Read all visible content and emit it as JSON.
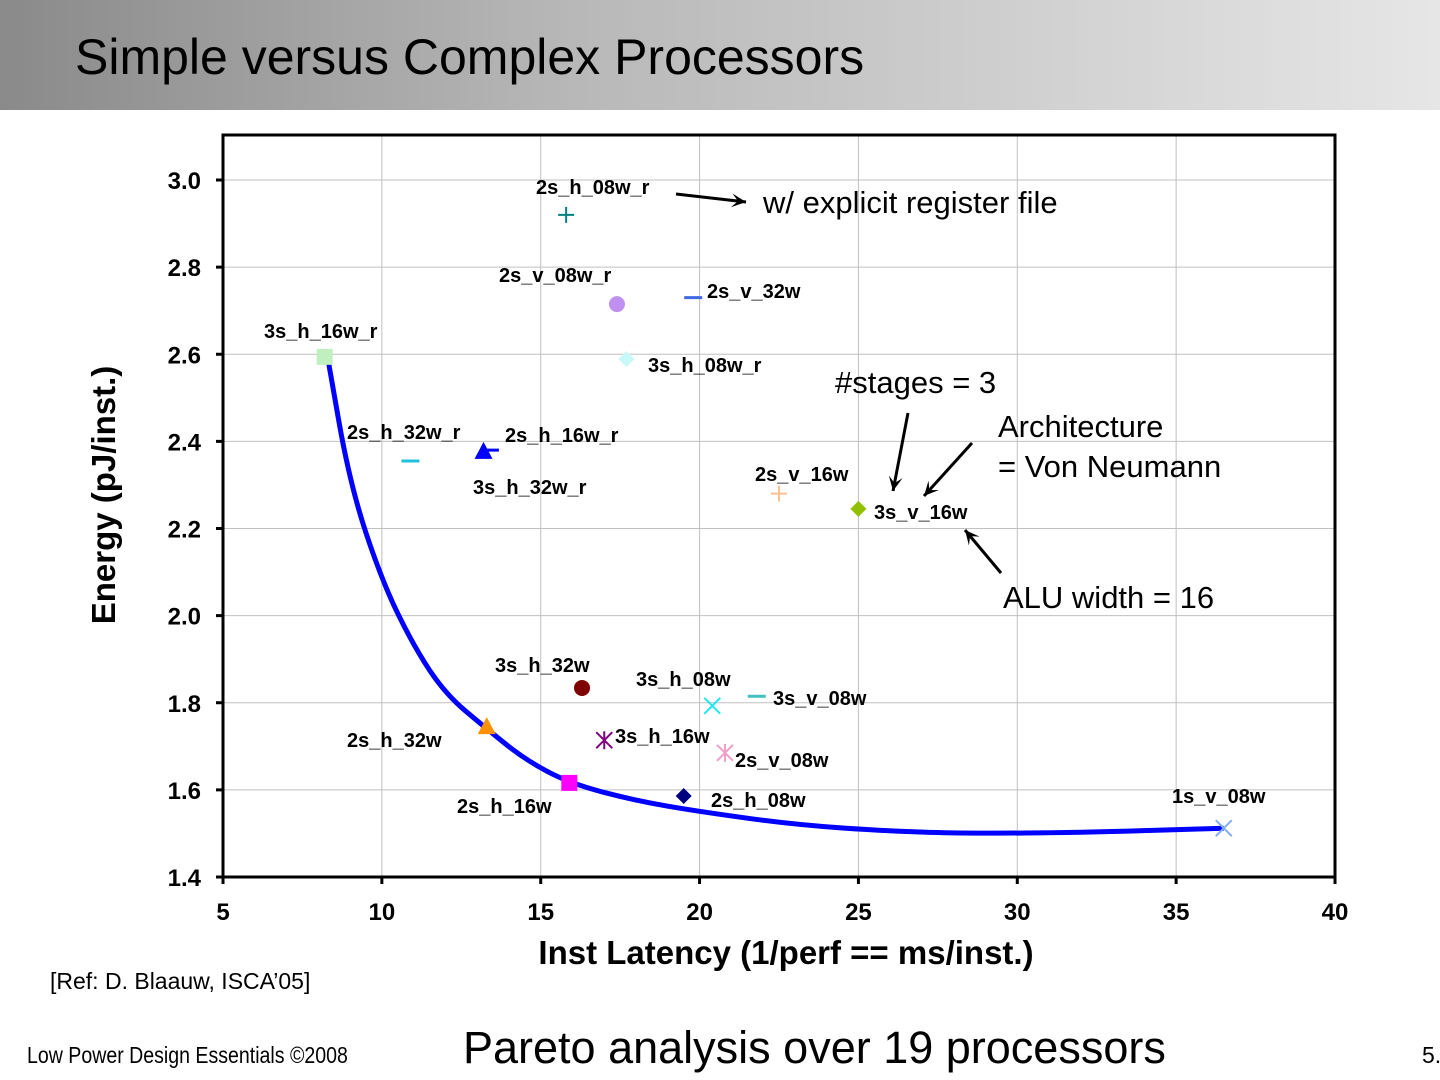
{
  "slide": {
    "title": "Simple versus Complex Processors",
    "reference": "[Ref: D. Blaauw, ISCA’05]",
    "footer": "Low Power Design Essentials ©2008",
    "caption": "Pareto analysis over 19 processors",
    "page_number": "5."
  },
  "chart_data": {
    "type": "scatter",
    "xlabel": "Inst Latency (1/perf == ms/inst.)",
    "ylabel": "Energy (pJ/inst.)",
    "xlim": [
      5,
      40
    ],
    "ylim": [
      1.4,
      3.0
    ],
    "xticks": [
      "5",
      "10",
      "15",
      "20",
      "25",
      "30",
      "35",
      "40"
    ],
    "yticks": [
      "1.4",
      "1.6",
      "1.8",
      "2.0",
      "2.2",
      "2.4",
      "2.6",
      "2.8",
      "3.0"
    ],
    "grid": true,
    "points": [
      {
        "label": "2s_h_08w_r",
        "x": 15.8,
        "y": 2.92,
        "marker": "plus",
        "color": "#008080"
      },
      {
        "label": "2s_v_08w_r",
        "x": 17.4,
        "y": 2.715,
        "marker": "circle",
        "color": "#c090f0"
      },
      {
        "label": "2s_v_32w",
        "x": 19.8,
        "y": 2.73,
        "marker": "dash",
        "color": "#4169e1"
      },
      {
        "label": "3s_h_16w_r",
        "x": 8.2,
        "y": 2.594,
        "marker": "square",
        "color": "#c0f0c0"
      },
      {
        "label": "3s_h_08w_r",
        "x": 17.7,
        "y": 2.589,
        "marker": "diamond",
        "color": "#c8f8f8"
      },
      {
        "label": "2s_h_32w_r",
        "x": 10.9,
        "y": 2.355,
        "marker": "dash",
        "color": "#20c0e0"
      },
      {
        "label": "3s_h_32w_r",
        "x": 13.2,
        "y": 2.376,
        "marker": "triangle",
        "color": "#0000ff"
      },
      {
        "label": "2s_h_16w_r",
        "x": 13.4,
        "y": 2.38,
        "marker": "dash",
        "color": "#0000ff"
      },
      {
        "label": "2s_v_16w",
        "x": 22.5,
        "y": 2.28,
        "marker": "plus",
        "color": "#ffc090"
      },
      {
        "label": "3s_v_16w",
        "x": 25.0,
        "y": 2.245,
        "marker": "diamond",
        "color": "#90c000"
      },
      {
        "label": "3s_h_32w",
        "x": 16.3,
        "y": 1.834,
        "marker": "circle",
        "color": "#800000"
      },
      {
        "label": "3s_h_08w",
        "x": 20.4,
        "y": 1.793,
        "marker": "x",
        "color": "#20e8f0"
      },
      {
        "label": "3s_v_08w",
        "x": 21.8,
        "y": 1.815,
        "marker": "dash",
        "color": "#40c0c0"
      },
      {
        "label": "2s_h_32w",
        "x": 13.3,
        "y": 1.744,
        "marker": "triangle",
        "color": "#ff9000"
      },
      {
        "label": "3s_h_16w",
        "x": 17.0,
        "y": 1.714,
        "marker": "asterisk",
        "color": "#800080"
      },
      {
        "label": "2s_v_08w",
        "x": 20.8,
        "y": 1.685,
        "marker": "asterisk",
        "color": "#f0a0c8"
      },
      {
        "label": "2s_h_16w",
        "x": 15.9,
        "y": 1.616,
        "marker": "square",
        "color": "#ff00ff"
      },
      {
        "label": "2s_h_08w",
        "x": 19.5,
        "y": 1.586,
        "marker": "diamond",
        "color": "#000080"
      },
      {
        "label": "1s_v_08w",
        "x": 36.5,
        "y": 1.512,
        "marker": "x",
        "color": "#80b0f0"
      }
    ],
    "pareto_curve": {
      "color": "#0000ff",
      "points": [
        [
          8.3,
          2.59
        ],
        [
          9,
          2.3
        ],
        [
          10,
          2.08
        ],
        [
          11,
          1.93
        ],
        [
          12,
          1.82
        ],
        [
          13.3,
          1.74
        ],
        [
          14.5,
          1.67
        ],
        [
          15.9,
          1.615
        ],
        [
          18,
          1.575
        ],
        [
          20,
          1.55
        ],
        [
          23,
          1.52
        ],
        [
          26,
          1.505
        ],
        [
          28.5,
          1.5
        ],
        [
          32,
          1.502
        ],
        [
          36.5,
          1.512
        ]
      ]
    },
    "annotations": [
      "w/ explicit register file",
      "#stages = 3",
      "Architecture",
      "= Von Neumann",
      "ALU width = 16"
    ]
  }
}
